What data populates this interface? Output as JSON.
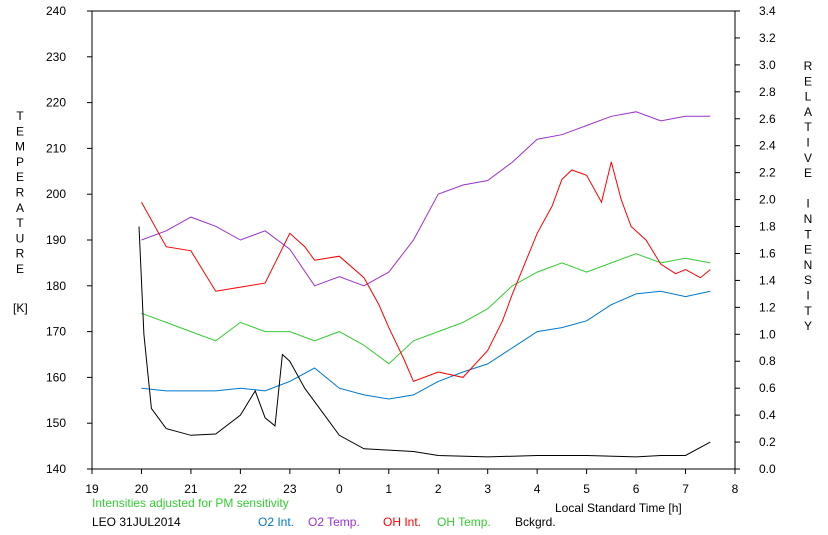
{
  "chart_data": {
    "type": "line",
    "left_axis": {
      "label_letters": [
        "T",
        "E",
        "M",
        "P",
        "E",
        "R",
        "A",
        "T",
        "U",
        "R",
        "E"
      ],
      "unit": "[K]",
      "range": [
        140,
        240
      ],
      "ticks": [
        140,
        150,
        160,
        170,
        180,
        190,
        200,
        210,
        220,
        230,
        240
      ]
    },
    "right_axis": {
      "label_letters": [
        "R",
        "E",
        "L",
        "A",
        "T",
        "I",
        "V",
        "E",
        "",
        "I",
        "N",
        "T",
        "E",
        "N",
        "S",
        "I",
        "T",
        "Y"
      ],
      "range": [
        0.0,
        3.4
      ],
      "ticks": [
        "0.0",
        "0.2",
        "0.4",
        "0.6",
        "0.8",
        "1.0",
        "1.2",
        "1.4",
        "1.6",
        "1.8",
        "2.0",
        "2.2",
        "2.4",
        "2.6",
        "2.8",
        "3.0",
        "3.2",
        "3.4"
      ]
    },
    "x_axis": {
      "label": "Local Standard Time [h]",
      "range": [
        19,
        32
      ],
      "tick_values": [
        19,
        20,
        21,
        22,
        23,
        24,
        25,
        26,
        27,
        28,
        29,
        30,
        31,
        32
      ],
      "tick_labels": [
        "19",
        "20",
        "21",
        "22",
        "23",
        "0",
        "1",
        "2",
        "3",
        "4",
        "5",
        "6",
        "7",
        "8"
      ]
    },
    "note": "Intensities adjusted for PM sensitivity",
    "station": "LEO 31JUL2014",
    "legend": [
      "O2 Int.",
      "O2 Temp.",
      "OH Int.",
      "OH Temp.",
      "Bckgrd."
    ],
    "grid": false,
    "series": [
      {
        "name": "O2 Temp.",
        "axis": "left",
        "color": "#9933cc",
        "x": [
          20.0,
          20.5,
          21.0,
          21.5,
          22.0,
          22.5,
          23.0,
          23.5,
          24.0,
          24.5,
          25.0,
          25.5,
          26.0,
          26.5,
          27.0,
          27.5,
          28.0,
          28.5,
          29.0,
          29.5,
          30.0,
          30.5,
          31.0,
          31.5
        ],
        "y": [
          190,
          192,
          195,
          193,
          190,
          192,
          188,
          180,
          182,
          180,
          183,
          190,
          200,
          202,
          203,
          207,
          212,
          213,
          215,
          217,
          218,
          216,
          217,
          217
        ]
      },
      {
        "name": "OH Int.",
        "axis": "right",
        "color": "#ff0000",
        "x": [
          20.0,
          20.5,
          21.0,
          21.5,
          22.0,
          22.5,
          23.0,
          23.3,
          23.5,
          24.0,
          24.5,
          24.8,
          25.0,
          25.3,
          25.5,
          26.0,
          26.5,
          27.0,
          27.3,
          27.5,
          28.0,
          28.3,
          28.5,
          28.7,
          29.0,
          29.3,
          29.5,
          29.7,
          29.9,
          30.2,
          30.5,
          30.8,
          31.0,
          31.3,
          31.5
        ],
        "y": [
          1.98,
          1.65,
          1.62,
          1.32,
          1.35,
          1.38,
          1.75,
          1.65,
          1.55,
          1.58,
          1.42,
          1.22,
          1.05,
          0.82,
          0.65,
          0.72,
          0.68,
          0.88,
          1.1,
          1.3,
          1.75,
          1.95,
          2.15,
          2.22,
          2.18,
          1.98,
          2.28,
          2.0,
          1.8,
          1.7,
          1.52,
          1.45,
          1.48,
          1.42,
          1.48
        ]
      },
      {
        "name": "OH Temp.",
        "axis": "left",
        "color": "#33cc33",
        "x": [
          20.0,
          20.5,
          21.0,
          21.5,
          22.0,
          22.5,
          23.0,
          23.5,
          24.0,
          24.5,
          25.0,
          25.5,
          26.0,
          26.5,
          27.0,
          27.5,
          28.0,
          28.5,
          29.0,
          29.5,
          30.0,
          30.5,
          31.0,
          31.5
        ],
        "y": [
          174,
          172,
          170,
          168,
          172,
          170,
          170,
          168,
          170,
          167,
          163,
          168,
          170,
          172,
          175,
          180,
          183,
          185,
          183,
          185,
          187,
          185,
          186,
          185
        ]
      },
      {
        "name": "O2 Int.",
        "axis": "right",
        "color": "#0077cc",
        "x": [
          20.0,
          20.5,
          21.0,
          21.5,
          22.0,
          22.5,
          23.0,
          23.5,
          24.0,
          24.5,
          25.0,
          25.5,
          26.0,
          26.5,
          27.0,
          27.5,
          28.0,
          28.5,
          29.0,
          29.5,
          30.0,
          30.5,
          31.0,
          31.5
        ],
        "y": [
          0.6,
          0.58,
          0.58,
          0.58,
          0.6,
          0.58,
          0.65,
          0.75,
          0.6,
          0.55,
          0.52,
          0.55,
          0.65,
          0.72,
          0.78,
          0.9,
          1.02,
          1.05,
          1.1,
          1.22,
          1.3,
          1.32,
          1.28,
          1.32
        ]
      },
      {
        "name": "Bckgrd.",
        "axis": "right",
        "color": "#000000",
        "x": [
          19.95,
          20.05,
          20.2,
          20.5,
          21.0,
          21.5,
          22.0,
          22.3,
          22.5,
          22.7,
          22.85,
          23.0,
          23.3,
          23.7,
          24.0,
          24.5,
          25.0,
          25.5,
          26.0,
          27.0,
          28.0,
          29.0,
          30.0,
          30.5,
          31.0,
          31.5
        ],
        "y": [
          1.8,
          1.0,
          0.45,
          0.3,
          0.25,
          0.26,
          0.4,
          0.58,
          0.38,
          0.32,
          0.85,
          0.8,
          0.6,
          0.4,
          0.25,
          0.15,
          0.14,
          0.13,
          0.1,
          0.09,
          0.1,
          0.1,
          0.09,
          0.1,
          0.1,
          0.2
        ]
      }
    ]
  }
}
